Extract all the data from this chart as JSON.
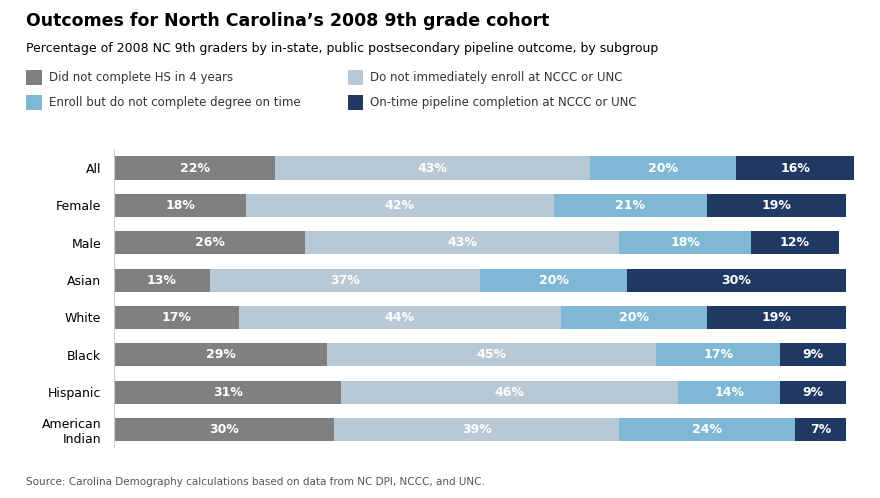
{
  "title": "Outcomes for North Carolina’s 2008 9th grade cohort",
  "subtitle": "Percentage of 2008 NC 9th graders by in-state, public postsecondary pipeline outcome, by subgroup",
  "source": "Source: Carolina Demography calculations based on data from NC DPI, NCCC, and UNC.",
  "categories": [
    "All",
    "Female",
    "Male",
    "Asian",
    "White",
    "Black",
    "Hispanic",
    "American\nIndian"
  ],
  "legend_labels": [
    "Did not complete HS in 4 years",
    "Do not immediately enroll at NCCC or UNC",
    "Enroll but do not complete degree on time",
    "On-time pipeline completion at NCCC or UNC"
  ],
  "colors": [
    "#808080",
    "#b8c8d4",
    "#7eb8d4",
    "#1f3864"
  ],
  "data": [
    [
      22,
      43,
      20,
      16
    ],
    [
      18,
      42,
      21,
      19
    ],
    [
      26,
      43,
      18,
      12
    ],
    [
      13,
      37,
      20,
      30
    ],
    [
      17,
      44,
      20,
      19
    ],
    [
      29,
      45,
      17,
      9
    ],
    [
      31,
      46,
      14,
      9
    ],
    [
      30,
      39,
      24,
      7
    ]
  ],
  "bar_height": 0.62,
  "background_color": "#ffffff",
  "text_color": "#000000",
  "title_fontsize": 12.5,
  "subtitle_fontsize": 9,
  "label_fontsize": 9,
  "bar_label_fontsize": 9,
  "legend_fontsize": 8.5,
  "source_fontsize": 7.5
}
